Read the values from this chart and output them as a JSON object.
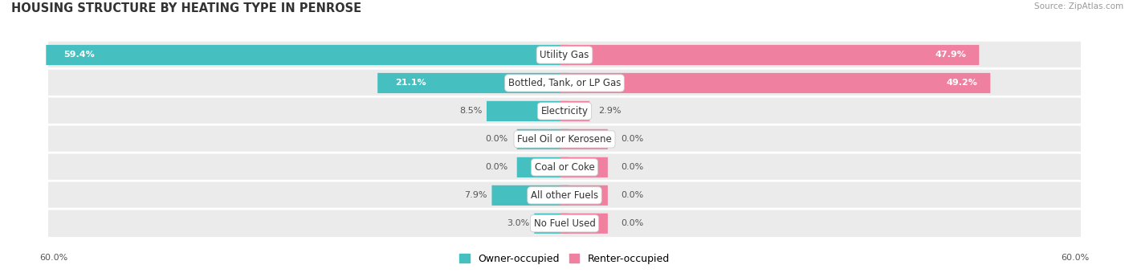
{
  "title": "HOUSING STRUCTURE BY HEATING TYPE IN PENROSE",
  "source": "Source: ZipAtlas.com",
  "categories": [
    "Utility Gas",
    "Bottled, Tank, or LP Gas",
    "Electricity",
    "Fuel Oil or Kerosene",
    "Coal or Coke",
    "All other Fuels",
    "No Fuel Used"
  ],
  "owner_values": [
    59.4,
    21.1,
    8.5,
    0.0,
    0.0,
    7.9,
    3.0
  ],
  "renter_values": [
    47.9,
    49.2,
    2.9,
    0.0,
    0.0,
    0.0,
    0.0
  ],
  "owner_color": "#45BFBF",
  "renter_color": "#F080A0",
  "row_bg_color": "#EBEBEB",
  "row_sep_color": "#FFFFFF",
  "max_val": 60.0,
  "stub_val": 5.0,
  "axis_label_left": "60.0%",
  "axis_label_right": "60.0%",
  "title_fontsize": 10.5,
  "label_fontsize": 8.5,
  "value_fontsize": 8.0,
  "legend_fontsize": 9.0
}
